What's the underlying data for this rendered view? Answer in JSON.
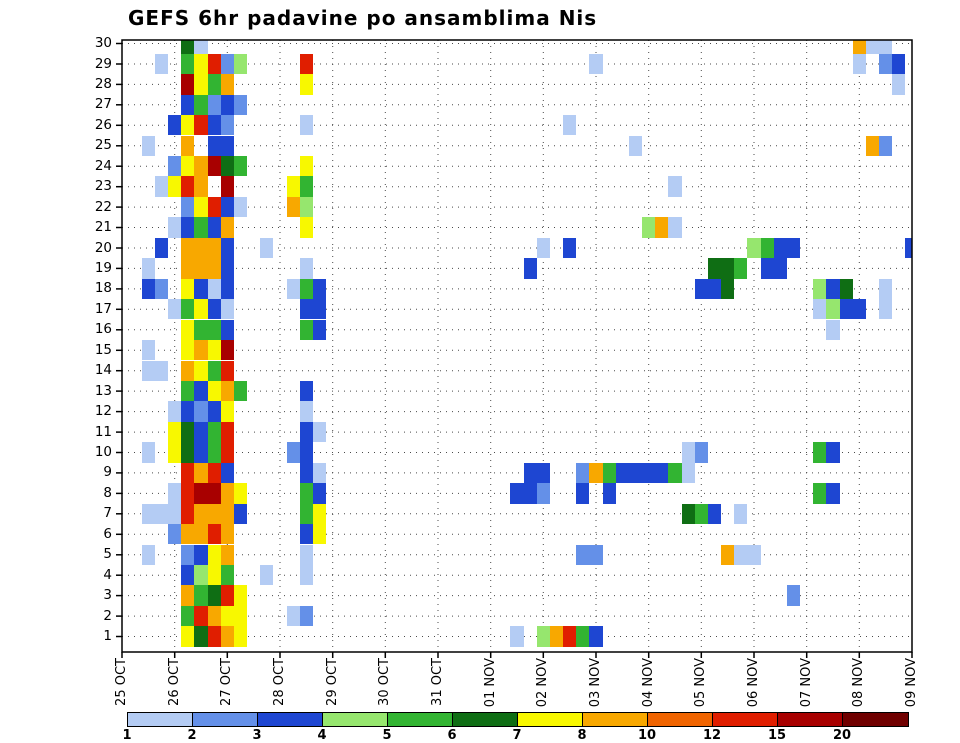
{
  "title": "GEFS 6hr padavine po ansamblima Nis",
  "chart_data": {
    "type": "heatmap",
    "title": "GEFS 6hr padavine po ansamblima Nis",
    "xlabel": "",
    "ylabel": "",
    "grid": "dotted",
    "legend_position": "bottom",
    "x_axis": {
      "tick_labels": [
        "25 OCT",
        "26 OCT",
        "27 OCT",
        "28 OCT",
        "29 OCT",
        "30 OCT",
        "31 OCT",
        "01 NOV",
        "02 NOV",
        "03 NOV",
        "04 NOV",
        "05 NOV",
        "06 NOV",
        "07 NOV",
        "08 NOV",
        "09 NOV"
      ],
      "steps_per_day": 4,
      "step_hours": 6,
      "n_steps": 61
    },
    "y_axis": {
      "tick_labels": [
        "30",
        "29",
        "28",
        "27",
        "26",
        "25",
        "24",
        "23",
        "22",
        "21",
        "20",
        "19",
        "18",
        "17",
        "16",
        "15",
        "14",
        "13",
        "12",
        "11",
        "10",
        "9",
        "8",
        "7",
        "6",
        "5",
        "4",
        "3",
        "2",
        "1"
      ],
      "members": 30
    },
    "colorbar": {
      "labels": [
        "1",
        "2",
        "3",
        "4",
        "5",
        "6",
        "7",
        "8",
        "10",
        "12",
        "15",
        "20"
      ],
      "thresholds": [
        1,
        2,
        3,
        4,
        5,
        6,
        7,
        8,
        10,
        12,
        15,
        20
      ],
      "colors": [
        "#b4ccf4",
        "#6490e8",
        "#1e46d2",
        "#96e66e",
        "#32b432",
        "#0f6e14",
        "#f8f800",
        "#f8a800",
        "#f06400",
        "#e01e00",
        "#a80000",
        "#700000"
      ]
    },
    "cells_by_member": {
      "1": [
        [
          5,
          7.5
        ],
        [
          6,
          6.5
        ],
        [
          7,
          13.5
        ],
        [
          8,
          9
        ],
        [
          9,
          7.5
        ],
        [
          30,
          1.5
        ],
        [
          32,
          4.5
        ],
        [
          33,
          9
        ],
        [
          34,
          13.5
        ],
        [
          35,
          5.5
        ],
        [
          36,
          3.5
        ]
      ],
      "2": [
        [
          5,
          5.5
        ],
        [
          6,
          13.5
        ],
        [
          7,
          9
        ],
        [
          8,
          7.5
        ],
        [
          9,
          7.5
        ],
        [
          13,
          1.5
        ],
        [
          14,
          2.5
        ]
      ],
      "3": [
        [
          5,
          9
        ],
        [
          6,
          5.5
        ],
        [
          7,
          6.5
        ],
        [
          8,
          13.5
        ],
        [
          9,
          7.5
        ],
        [
          51,
          2.5
        ]
      ],
      "4": [
        [
          5,
          3.5
        ],
        [
          6,
          4.5
        ],
        [
          7,
          7.5
        ],
        [
          8,
          5.5
        ],
        [
          11,
          1.5
        ],
        [
          14,
          1.5
        ]
      ],
      "5": [
        [
          2,
          1.5
        ],
        [
          5,
          2.5
        ],
        [
          6,
          3.5
        ],
        [
          7,
          7.5
        ],
        [
          8,
          9
        ],
        [
          14,
          1.5
        ],
        [
          35,
          2.5
        ],
        [
          36,
          2.5
        ],
        [
          46,
          9
        ],
        [
          47,
          1.5
        ],
        [
          48,
          1.5
        ]
      ],
      "6": [
        [
          4,
          2.5
        ],
        [
          5,
          9
        ],
        [
          6,
          9
        ],
        [
          7,
          13.5
        ],
        [
          8,
          9
        ],
        [
          14,
          3.5
        ],
        [
          15,
          7.5
        ]
      ],
      "7": [
        [
          2,
          1.5
        ],
        [
          3,
          1.5
        ],
        [
          4,
          1.5
        ],
        [
          5,
          13.5
        ],
        [
          6,
          9
        ],
        [
          7,
          9
        ],
        [
          8,
          9
        ],
        [
          9,
          3.5
        ],
        [
          14,
          5.5
        ],
        [
          15,
          7.5
        ],
        [
          43,
          6.5
        ],
        [
          44,
          5.5
        ],
        [
          45,
          3.5
        ],
        [
          47,
          1.5
        ]
      ],
      "8": [
        [
          4,
          1.5
        ],
        [
          5,
          13.5
        ],
        [
          6,
          17
        ],
        [
          7,
          17
        ],
        [
          8,
          9
        ],
        [
          9,
          7.5
        ],
        [
          14,
          5.5
        ],
        [
          15,
          3.5
        ],
        [
          30,
          3.5
        ],
        [
          31,
          3.5
        ],
        [
          32,
          2.5
        ],
        [
          35,
          3.5
        ],
        [
          37,
          3.5
        ],
        [
          53,
          5.5
        ],
        [
          54,
          3.5
        ]
      ],
      "9": [
        [
          5,
          13.5
        ],
        [
          6,
          9
        ],
        [
          7,
          13.5
        ],
        [
          8,
          3.5
        ],
        [
          14,
          3.5
        ],
        [
          15,
          1.5
        ],
        [
          31,
          3.5
        ],
        [
          32,
          3.5
        ],
        [
          35,
          2.5
        ],
        [
          36,
          9
        ],
        [
          37,
          5.5
        ],
        [
          38,
          3.5
        ],
        [
          39,
          3.5
        ],
        [
          40,
          3.5
        ],
        [
          41,
          3.5
        ],
        [
          42,
          5.5
        ],
        [
          43,
          1.5
        ]
      ],
      "10": [
        [
          2,
          1.5
        ],
        [
          4,
          7.5
        ],
        [
          5,
          6.5
        ],
        [
          6,
          3.5
        ],
        [
          7,
          5.5
        ],
        [
          8,
          13.5
        ],
        [
          13,
          2.5
        ],
        [
          14,
          3.5
        ],
        [
          43,
          1.5
        ],
        [
          44,
          2.5
        ],
        [
          53,
          5.5
        ],
        [
          54,
          3.5
        ]
      ],
      "11": [
        [
          4,
          7.5
        ],
        [
          5,
          6.5
        ],
        [
          6,
          3.5
        ],
        [
          7,
          5.5
        ],
        [
          8,
          13.5
        ],
        [
          14,
          3.5
        ],
        [
          15,
          1.5
        ]
      ],
      "12": [
        [
          4,
          1.5
        ],
        [
          5,
          3.5
        ],
        [
          6,
          2.5
        ],
        [
          7,
          3.5
        ],
        [
          8,
          7.5
        ],
        [
          14,
          1.5
        ]
      ],
      "13": [
        [
          5,
          5.5
        ],
        [
          6,
          3.5
        ],
        [
          7,
          7.5
        ],
        [
          8,
          9
        ],
        [
          9,
          5.5
        ],
        [
          14,
          3.5
        ]
      ],
      "14": [
        [
          2,
          1.5
        ],
        [
          3,
          1.5
        ],
        [
          5,
          9
        ],
        [
          6,
          7.5
        ],
        [
          7,
          5.5
        ],
        [
          8,
          13.5
        ]
      ],
      "15": [
        [
          2,
          1.5
        ],
        [
          5,
          7.5
        ],
        [
          6,
          9
        ],
        [
          7,
          7.5
        ],
        [
          8,
          17
        ]
      ],
      "16": [
        [
          5,
          7.5
        ],
        [
          6,
          5.5
        ],
        [
          7,
          5.5
        ],
        [
          8,
          3.5
        ],
        [
          14,
          5.5
        ],
        [
          15,
          3.5
        ],
        [
          54,
          1.5
        ]
      ],
      "17": [
        [
          4,
          1.5
        ],
        [
          5,
          5.5
        ],
        [
          6,
          7.5
        ],
        [
          7,
          3.5
        ],
        [
          8,
          1.5
        ],
        [
          14,
          3.5
        ],
        [
          15,
          3.5
        ],
        [
          53,
          1.5
        ],
        [
          54,
          4.5
        ],
        [
          55,
          3.5
        ],
        [
          56,
          3.5
        ],
        [
          58,
          1.5
        ]
      ],
      "18": [
        [
          2,
          3.5
        ],
        [
          3,
          2.5
        ],
        [
          5,
          7.5
        ],
        [
          6,
          3.5
        ],
        [
          7,
          1.5
        ],
        [
          8,
          3.5
        ],
        [
          13,
          1.5
        ],
        [
          14,
          5.5
        ],
        [
          15,
          3.5
        ],
        [
          44,
          3.5
        ],
        [
          45,
          3.5
        ],
        [
          46,
          6.5
        ],
        [
          53,
          4.5
        ],
        [
          54,
          3.5
        ],
        [
          55,
          6.5
        ],
        [
          58,
          1.5
        ]
      ],
      "19": [
        [
          2,
          1.5
        ],
        [
          5,
          9
        ],
        [
          6,
          9
        ],
        [
          7,
          9
        ],
        [
          8,
          3.5
        ],
        [
          14,
          1.5
        ],
        [
          31,
          3.5
        ],
        [
          45,
          6.5
        ],
        [
          46,
          6.5
        ],
        [
          47,
          5.5
        ],
        [
          49,
          3.5
        ],
        [
          50,
          3.5
        ]
      ],
      "20": [
        [
          3,
          3.5
        ],
        [
          5,
          9
        ],
        [
          6,
          9
        ],
        [
          7,
          9
        ],
        [
          8,
          3.5
        ],
        [
          11,
          1.5
        ],
        [
          32,
          1.5
        ],
        [
          34,
          3.5
        ],
        [
          48,
          4.5
        ],
        [
          49,
          5.5
        ],
        [
          50,
          3.5
        ],
        [
          51,
          3.5
        ],
        [
          60,
          3.5
        ]
      ],
      "21": [
        [
          4,
          1.5
        ],
        [
          5,
          3.5
        ],
        [
          6,
          5.5
        ],
        [
          7,
          3.5
        ],
        [
          8,
          9
        ],
        [
          14,
          7.5
        ],
        [
          40,
          4.5
        ],
        [
          41,
          9
        ],
        [
          42,
          1.5
        ]
      ],
      "22": [
        [
          5,
          2.5
        ],
        [
          6,
          7.5
        ],
        [
          7,
          13.5
        ],
        [
          8,
          3.5
        ],
        [
          9,
          1.5
        ],
        [
          13,
          9
        ],
        [
          14,
          4.5
        ]
      ],
      "23": [
        [
          3,
          1.5
        ],
        [
          4,
          7.5
        ],
        [
          5,
          13.5
        ],
        [
          6,
          9
        ],
        [
          8,
          17
        ],
        [
          13,
          7.5
        ],
        [
          14,
          5.5
        ],
        [
          42,
          1.5
        ]
      ],
      "24": [
        [
          4,
          2.5
        ],
        [
          5,
          7.5
        ],
        [
          6,
          9
        ],
        [
          7,
          17
        ],
        [
          8,
          6.5
        ],
        [
          9,
          5.5
        ],
        [
          14,
          7.5
        ]
      ],
      "25": [
        [
          2,
          1.5
        ],
        [
          5,
          9
        ],
        [
          7,
          3.5
        ],
        [
          8,
          3.5
        ],
        [
          39,
          1.5
        ],
        [
          57,
          9
        ],
        [
          58,
          2.5
        ]
      ],
      "26": [
        [
          4,
          3.5
        ],
        [
          5,
          7.5
        ],
        [
          6,
          13.5
        ],
        [
          7,
          3.5
        ],
        [
          8,
          2.5
        ],
        [
          14,
          1.5
        ],
        [
          34,
          1.5
        ]
      ],
      "27": [
        [
          5,
          3.5
        ],
        [
          6,
          5.5
        ],
        [
          7,
          2.5
        ],
        [
          8,
          3.5
        ],
        [
          9,
          2.5
        ]
      ],
      "28": [
        [
          5,
          17
        ],
        [
          6,
          7.5
        ],
        [
          7,
          5.5
        ],
        [
          8,
          9
        ],
        [
          14,
          7.5
        ],
        [
          59,
          1.5
        ]
      ],
      "29": [
        [
          3,
          1.5
        ],
        [
          5,
          5.5
        ],
        [
          6,
          7.5
        ],
        [
          7,
          13.5
        ],
        [
          8,
          2.5
        ],
        [
          9,
          4.5
        ],
        [
          14,
          13.5
        ],
        [
          36,
          1.5
        ],
        [
          56,
          1.5
        ],
        [
          58,
          2.5
        ],
        [
          59,
          3.5
        ]
      ],
      "30": [
        [
          5,
          6.5
        ],
        [
          6,
          1.5
        ],
        [
          56,
          9
        ],
        [
          57,
          1.5
        ],
        [
          58,
          1.5
        ]
      ]
    }
  }
}
